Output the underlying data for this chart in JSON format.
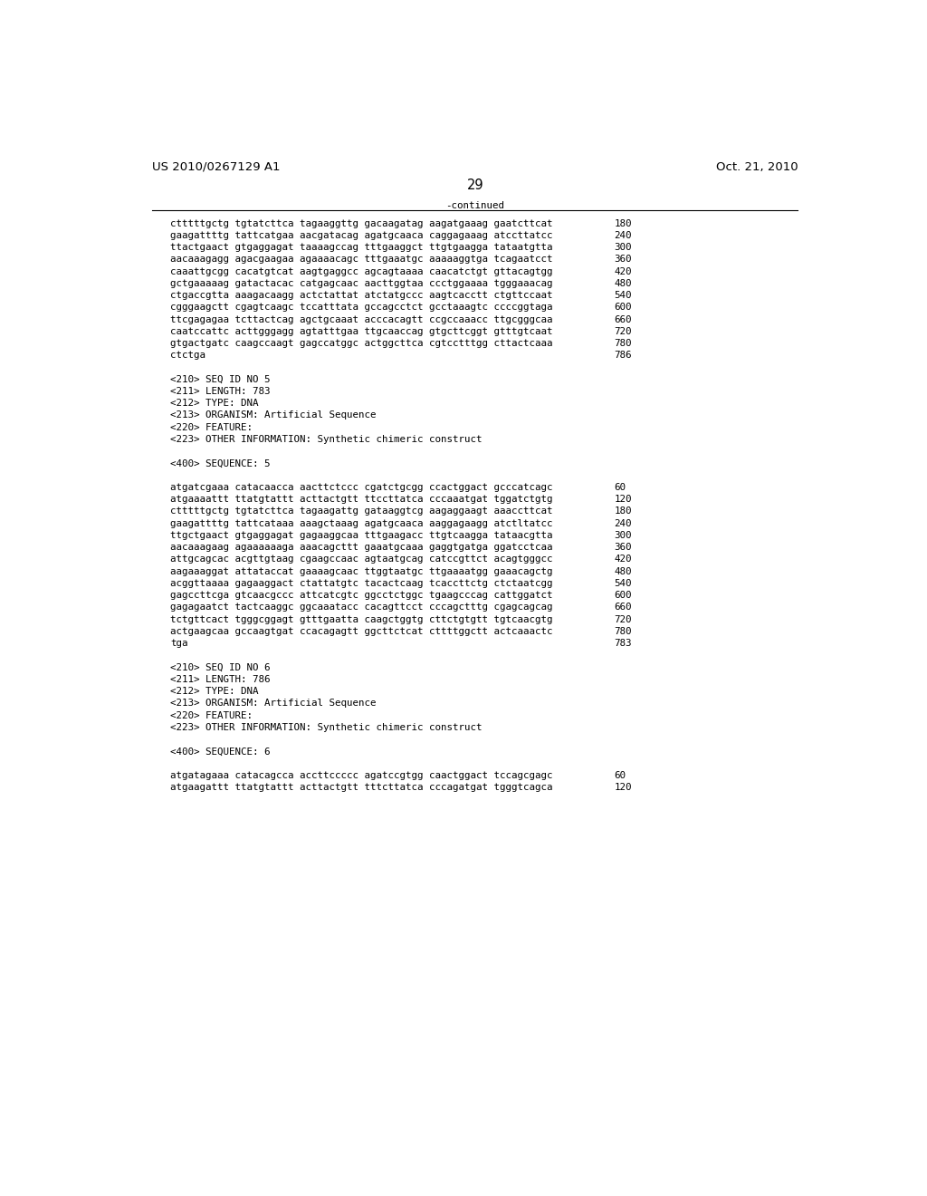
{
  "patent_number": "US 2010/0267129 A1",
  "date": "Oct. 21, 2010",
  "page_number": "29",
  "continued_label": "-continued",
  "background_color": "#ffffff",
  "text_color": "#000000",
  "font_size_header": 9.5,
  "font_size_page": 10.5,
  "font_size_mono": 7.8,
  "lines": [
    {
      "text": "ctttttgctg tgtatcttca tagaaggttg gacaagatag aagatgaaag gaatcttcat",
      "num": "180"
    },
    {
      "text": "gaagattttg tattcatgaa aacgatacag agatgcaaca caggagaaag atccttatcc",
      "num": "240"
    },
    {
      "text": "ttactgaact gtgaggagat taaaagccag tttgaaggct ttgtgaagga tataatgtta",
      "num": "300"
    },
    {
      "text": "aacaaagagg agacgaagaa agaaaacagc tttgaaatgc aaaaaggtga tcagaatcct",
      "num": "360"
    },
    {
      "text": "caaattgcgg cacatgtcat aagtgaggcc agcagtaaaa caacatctgt gttacagtgg",
      "num": "420"
    },
    {
      "text": "gctgaaaaag gatactacac catgagcaac aacttggtaa ccctggaaaa tgggaaacag",
      "num": "480"
    },
    {
      "text": "ctgaccgtta aaagacaagg actctattat atctatgccc aagtcacctt ctgttccaat",
      "num": "540"
    },
    {
      "text": "cgggaagctt cgagtcaagc tccatttata gccagcctct gcctaaagtc ccccggtaga",
      "num": "600"
    },
    {
      "text": "ttcgagagaa tcttactcag agctgcaaat acccacagtt ccgccaaacc ttgcgggcaa",
      "num": "660"
    },
    {
      "text": "caatccattc acttgggagg agtatttgaa ttgcaaccag gtgcttcggt gtttgtcaat",
      "num": "720"
    },
    {
      "text": "gtgactgatc caagccaagt gagccatggc actggcttca cgtcctttgg cttactcaaa",
      "num": "780"
    },
    {
      "text": "ctctga",
      "num": "786"
    },
    {
      "text": "",
      "num": ""
    },
    {
      "text": "<210> SEQ ID NO 5",
      "num": ""
    },
    {
      "text": "<211> LENGTH: 783",
      "num": ""
    },
    {
      "text": "<212> TYPE: DNA",
      "num": ""
    },
    {
      "text": "<213> ORGANISM: Artificial Sequence",
      "num": ""
    },
    {
      "text": "<220> FEATURE:",
      "num": ""
    },
    {
      "text": "<223> OTHER INFORMATION: Synthetic chimeric construct",
      "num": ""
    },
    {
      "text": "",
      "num": ""
    },
    {
      "text": "<400> SEQUENCE: 5",
      "num": ""
    },
    {
      "text": "",
      "num": ""
    },
    {
      "text": "atgatcgaaa catacaacca aacttctccc cgatctgcgg ccactggact gcccatcagc",
      "num": "60"
    },
    {
      "text": "atgaaaattt ttatgtattt acttactgtt ttccttatca cccaaatgat tggatctgtg",
      "num": "120"
    },
    {
      "text": "ctttttgctg tgtatcttca tagaagattg gataaggtcg aagaggaagt aaaccttcat",
      "num": "180"
    },
    {
      "text": "gaagattttg tattcataaa aaagctaaag agatgcaaca aaggagaagg atctltatcc",
      "num": "240"
    },
    {
      "text": "ttgctgaact gtgaggagat gagaaggcaa tttgaagacc ttgtcaagga tataacgtta",
      "num": "300"
    },
    {
      "text": "aacaaagaag agaaaaaaga aaacagcttt gaaatgcaaa gaggtgatga ggatcctcaa",
      "num": "360"
    },
    {
      "text": "attgcagcac acgttgtaag cgaagccaac agtaatgcag catccgttct acagtgggcc",
      "num": "420"
    },
    {
      "text": "aagaaaggat attataccat gaaaagcaac ttggtaatgc ttgaaaatgg gaaacagctg",
      "num": "480"
    },
    {
      "text": "acggttaaaa gagaaggact ctattatgtc tacactcaag tcaccttctg ctctaatcgg",
      "num": "540"
    },
    {
      "text": "gagccttcga gtcaacgccc attcatcgtc ggcctctggc tgaagcccag cattggatct",
      "num": "600"
    },
    {
      "text": "gagagaatct tactcaaggc ggcaaatacc cacagttcct cccagctttg cgagcagcag",
      "num": "660"
    },
    {
      "text": "tctgttcact tgggcggagt gtttgaatta caagctggtg cttctgtgtt tgtcaacgtg",
      "num": "720"
    },
    {
      "text": "actgaagcaa gccaagtgat ccacagagtt ggcttctcat cttttggctt actcaaactc",
      "num": "780"
    },
    {
      "text": "tga",
      "num": "783"
    },
    {
      "text": "",
      "num": ""
    },
    {
      "text": "<210> SEQ ID NO 6",
      "num": ""
    },
    {
      "text": "<211> LENGTH: 786",
      "num": ""
    },
    {
      "text": "<212> TYPE: DNA",
      "num": ""
    },
    {
      "text": "<213> ORGANISM: Artificial Sequence",
      "num": ""
    },
    {
      "text": "<220> FEATURE:",
      "num": ""
    },
    {
      "text": "<223> OTHER INFORMATION: Synthetic chimeric construct",
      "num": ""
    },
    {
      "text": "",
      "num": ""
    },
    {
      "text": "<400> SEQUENCE: 6",
      "num": ""
    },
    {
      "text": "",
      "num": ""
    },
    {
      "text": "atgatagaaa catacagcca accttccccc agatccgtgg caactggact tccagcgagc",
      "num": "60"
    },
    {
      "text": "atgaagattt ttatgtattt acttactgtt tttcttatca cccagatgat tgggtcagca",
      "num": "120"
    }
  ]
}
